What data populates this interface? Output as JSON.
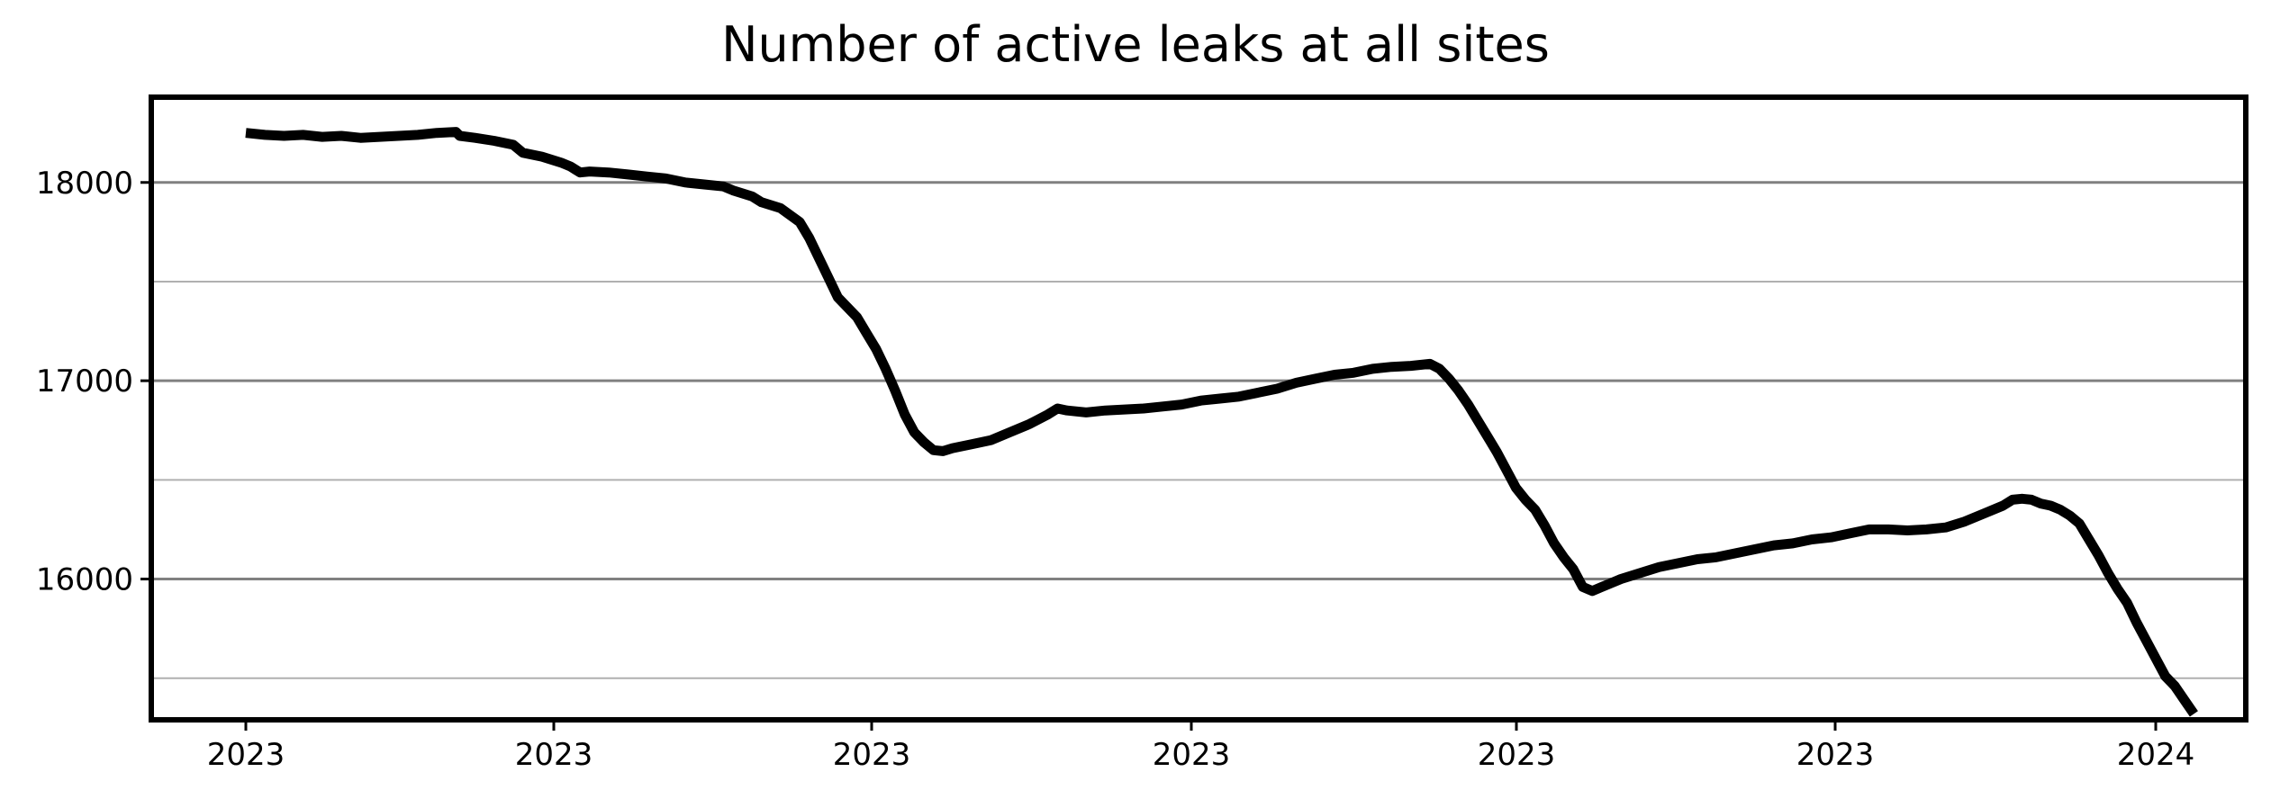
{
  "chart_data": {
    "type": "line",
    "title": "Number of active leaks at all sites",
    "xlabel": "",
    "ylabel": "",
    "ylim": [
      15290,
      18430
    ],
    "x_tick_labels": [
      "2023",
      "2023",
      "2023",
      "2023",
      "2023",
      "2023",
      "2024"
    ],
    "y_ticks": [
      {
        "value": 18000,
        "label": "18000",
        "major": true
      },
      {
        "value": 17500,
        "label": "",
        "major": false
      },
      {
        "value": 17000,
        "label": "17000",
        "major": true
      },
      {
        "value": 16500,
        "label": "",
        "major": false
      },
      {
        "value": 16000,
        "label": "16000",
        "major": true
      },
      {
        "value": 15500,
        "label": "",
        "major": false
      }
    ],
    "grid": true,
    "line_color": "#000000",
    "grid_major_color": "#808080",
    "grid_minor_color": "#b0b0b0",
    "series": [
      {
        "values": [
          [
            0.0,
            18250
          ],
          [
            0.01,
            18240
          ],
          [
            0.02,
            18235
          ],
          [
            0.03,
            18240
          ],
          [
            0.04,
            18230
          ],
          [
            0.05,
            18235
          ],
          [
            0.06,
            18225
          ],
          [
            0.07,
            18230
          ],
          [
            0.08,
            18235
          ],
          [
            0.09,
            18240
          ],
          [
            0.1,
            18250
          ],
          [
            0.11,
            18255
          ],
          [
            0.112,
            18235
          ],
          [
            0.12,
            18225
          ],
          [
            0.13,
            18210
          ],
          [
            0.14,
            18190
          ],
          [
            0.145,
            18150
          ],
          [
            0.155,
            18130
          ],
          [
            0.165,
            18100
          ],
          [
            0.17,
            18080
          ],
          [
            0.175,
            18050
          ],
          [
            0.18,
            18055
          ],
          [
            0.19,
            18050
          ],
          [
            0.2,
            18040
          ],
          [
            0.21,
            18030
          ],
          [
            0.22,
            18020
          ],
          [
            0.23,
            18000
          ],
          [
            0.24,
            17990
          ],
          [
            0.25,
            17980
          ],
          [
            0.255,
            17960
          ],
          [
            0.265,
            17930
          ],
          [
            0.27,
            17900
          ],
          [
            0.28,
            17870
          ],
          [
            0.29,
            17800
          ],
          [
            0.295,
            17720
          ],
          [
            0.3,
            17620
          ],
          [
            0.305,
            17520
          ],
          [
            0.31,
            17420
          ],
          [
            0.32,
            17320
          ],
          [
            0.325,
            17240
          ],
          [
            0.33,
            17160
          ],
          [
            0.335,
            17060
          ],
          [
            0.34,
            16950
          ],
          [
            0.345,
            16830
          ],
          [
            0.35,
            16740
          ],
          [
            0.355,
            16690
          ],
          [
            0.36,
            16650
          ],
          [
            0.365,
            16645
          ],
          [
            0.37,
            16660
          ],
          [
            0.38,
            16680
          ],
          [
            0.39,
            16700
          ],
          [
            0.4,
            16740
          ],
          [
            0.41,
            16780
          ],
          [
            0.42,
            16830
          ],
          [
            0.425,
            16860
          ],
          [
            0.43,
            16850
          ],
          [
            0.44,
            16840
          ],
          [
            0.45,
            16850
          ],
          [
            0.46,
            16855
          ],
          [
            0.47,
            16860
          ],
          [
            0.48,
            16870
          ],
          [
            0.49,
            16880
          ],
          [
            0.5,
            16900
          ],
          [
            0.51,
            16910
          ],
          [
            0.52,
            16920
          ],
          [
            0.53,
            16940
          ],
          [
            0.54,
            16960
          ],
          [
            0.55,
            16990
          ],
          [
            0.56,
            17010
          ],
          [
            0.57,
            17030
          ],
          [
            0.58,
            17040
          ],
          [
            0.59,
            17060
          ],
          [
            0.6,
            17070
          ],
          [
            0.61,
            17075
          ],
          [
            0.62,
            17085
          ],
          [
            0.625,
            17060
          ],
          [
            0.63,
            17010
          ],
          [
            0.635,
            16950
          ],
          [
            0.64,
            16880
          ],
          [
            0.645,
            16800
          ],
          [
            0.65,
            16720
          ],
          [
            0.655,
            16640
          ],
          [
            0.66,
            16550
          ],
          [
            0.665,
            16460
          ],
          [
            0.67,
            16400
          ],
          [
            0.675,
            16350
          ],
          [
            0.68,
            16270
          ],
          [
            0.685,
            16180
          ],
          [
            0.69,
            16110
          ],
          [
            0.695,
            16050
          ],
          [
            0.7,
            15960
          ],
          [
            0.705,
            15940
          ],
          [
            0.71,
            15960
          ],
          [
            0.715,
            15980
          ],
          [
            0.72,
            16000
          ],
          [
            0.73,
            16030
          ],
          [
            0.74,
            16060
          ],
          [
            0.75,
            16080
          ],
          [
            0.76,
            16100
          ],
          [
            0.77,
            16110
          ],
          [
            0.78,
            16130
          ],
          [
            0.79,
            16150
          ],
          [
            0.8,
            16170
          ],
          [
            0.81,
            16180
          ],
          [
            0.82,
            16200
          ],
          [
            0.83,
            16210
          ],
          [
            0.84,
            16230
          ],
          [
            0.85,
            16250
          ],
          [
            0.86,
            16250
          ],
          [
            0.87,
            16245
          ],
          [
            0.88,
            16250
          ],
          [
            0.89,
            16260
          ],
          [
            0.9,
            16290
          ],
          [
            0.91,
            16330
          ],
          [
            0.92,
            16370
          ],
          [
            0.925,
            16400
          ],
          [
            0.93,
            16405
          ],
          [
            0.935,
            16400
          ],
          [
            0.94,
            16380
          ],
          [
            0.945,
            16370
          ],
          [
            0.95,
            16350
          ],
          [
            0.955,
            16320
          ],
          [
            0.96,
            16280
          ],
          [
            0.965,
            16200
          ],
          [
            0.97,
            16120
          ],
          [
            0.975,
            16030
          ],
          [
            0.98,
            15950
          ],
          [
            0.985,
            15880
          ],
          [
            0.99,
            15780
          ],
          [
            0.995,
            15690
          ],
          [
            1.0,
            15600
          ],
          [
            1.005,
            15510
          ],
          [
            1.01,
            15460
          ],
          [
            1.015,
            15390
          ],
          [
            1.02,
            15320
          ]
        ]
      }
    ]
  }
}
